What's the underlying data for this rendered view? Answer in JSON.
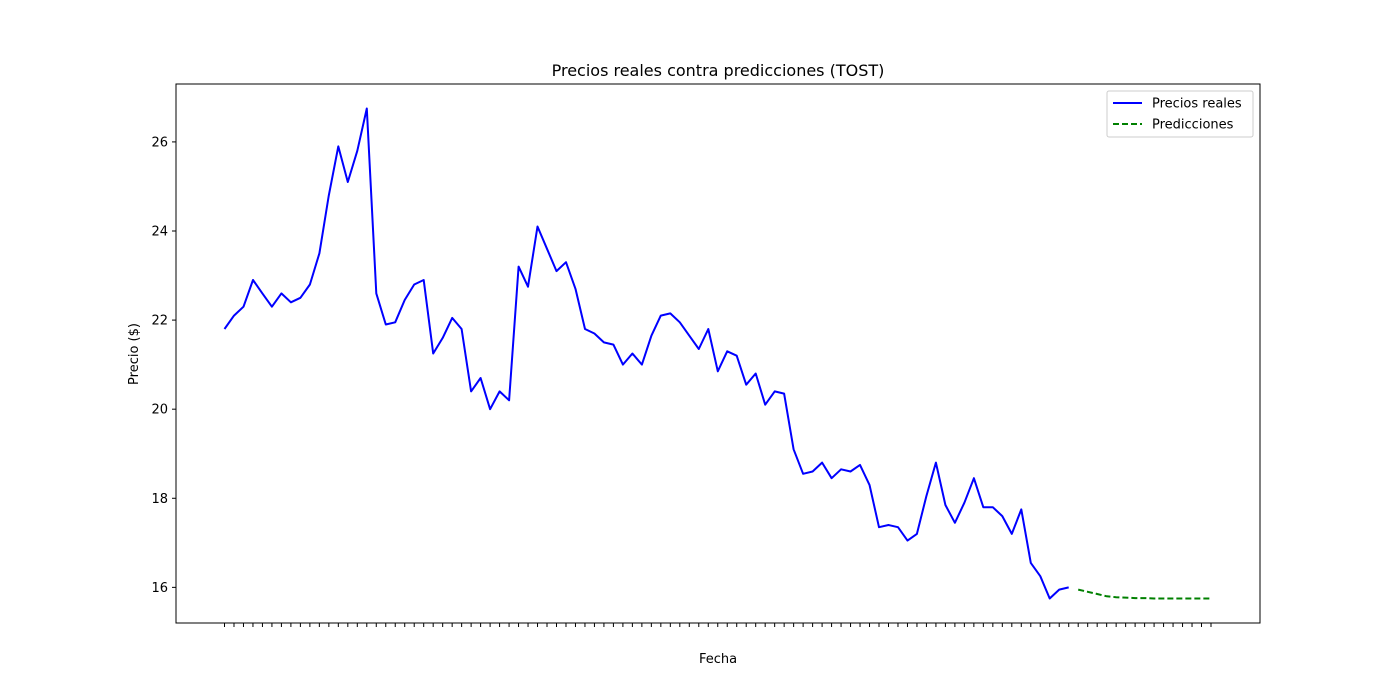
{
  "chart_data": {
    "type": "line",
    "title": "Precios reales contra predicciones (TOST)",
    "xlabel": "Fecha",
    "ylabel": "Precio ($)",
    "yticks": [
      16,
      18,
      20,
      22,
      24,
      26
    ],
    "ylim": [
      15.2,
      27.3
    ],
    "grid": false,
    "legend_position": "top-right",
    "colors": {
      "real": "#0000ff",
      "pred": "#008000"
    },
    "series": [
      {
        "name": "Precios reales",
        "style": "solid",
        "values": [
          21.8,
          22.1,
          22.3,
          22.9,
          22.6,
          22.3,
          22.6,
          22.4,
          22.5,
          22.8,
          23.5,
          24.8,
          25.9,
          25.1,
          25.8,
          26.75,
          22.6,
          21.9,
          21.95,
          22.45,
          22.8,
          22.9,
          21.25,
          21.6,
          22.05,
          21.8,
          20.4,
          20.7,
          20.0,
          20.4,
          20.2,
          23.2,
          22.75,
          24.1,
          23.6,
          23.1,
          23.3,
          22.7,
          21.8,
          21.7,
          21.5,
          21.45,
          21.0,
          21.25,
          21.0,
          21.65,
          22.1,
          22.15,
          21.95,
          21.65,
          21.35,
          21.8,
          20.85,
          21.3,
          21.2,
          20.55,
          20.8,
          20.1,
          20.4,
          20.35,
          19.1,
          18.55,
          18.6,
          18.8,
          18.45,
          18.65,
          18.6,
          18.75,
          18.3,
          17.35,
          17.4,
          17.35,
          17.05,
          17.2,
          18.05,
          18.8,
          17.85,
          17.45,
          17.9,
          18.45,
          17.8,
          17.8,
          17.6,
          17.2,
          17.75,
          16.55,
          16.25,
          15.75,
          15.95,
          16.0
        ]
      },
      {
        "name": "Predicciones",
        "style": "dashed",
        "values": [
          15.95,
          15.9,
          15.85,
          15.8,
          15.78,
          15.77,
          15.76,
          15.76,
          15.75,
          15.75,
          15.75,
          15.75,
          15.75,
          15.75,
          15.75
        ]
      }
    ]
  }
}
